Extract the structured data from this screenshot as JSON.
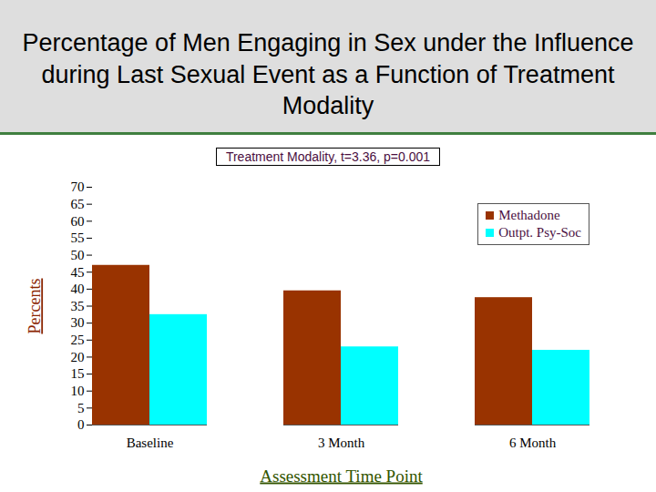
{
  "chart_data": {
    "type": "bar",
    "title": "Percentage of Men Engaging in Sex under the Influence during Last Sexual Event as a Function of Treatment Modality",
    "subtitle": "Treatment Modality, t=3.36, p=0.001",
    "x_label": "Assessment Time Point",
    "y_label": "Percents",
    "categories": [
      "Baseline",
      "3 Month",
      "6 Month"
    ],
    "series": [
      {
        "name": "Methadone",
        "color": "#993300",
        "values": [
          47,
          39.5,
          37.5
        ]
      },
      {
        "name": "Outpt. Psy-Soc",
        "color": "#00ffff",
        "values": [
          32.5,
          23,
          22
        ]
      }
    ],
    "ylim": [
      0,
      70
    ],
    "yticks": [
      0,
      5,
      10,
      15,
      20,
      25,
      30,
      35,
      40,
      45,
      50,
      55,
      60,
      65,
      70
    ],
    "grid": false,
    "legend": "top-right"
  }
}
